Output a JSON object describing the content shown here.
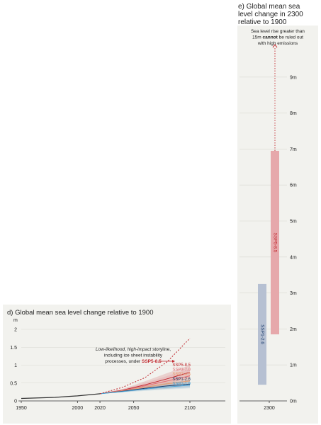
{
  "panel_d": {
    "title": "d) Global mean sea level change relative to 1900",
    "unit": "m",
    "annotation": {
      "line1_italic_1": "Low-likelihood",
      "line1_mid": ", ",
      "line1_italic_2": "high-impact",
      "line1_tail": " storyline,",
      "line2": "including ice sheet instability",
      "line3_prefix": "processes, under ",
      "line3_scenario": "SSP5-8.5"
    }
  },
  "panel_e": {
    "title_lines": [
      "e) Global mean sea",
      "level change in 2300",
      "relative to 1900"
    ],
    "note": {
      "line1": "Sea level rise greater than",
      "line2_prefix": "15m ",
      "line2_bold": "cannot",
      "line2_suffix": " be ruled out",
      "line3": "with high emissions"
    }
  },
  "colors": {
    "historical": "#333333",
    "ssp585": "#c0272d",
    "ssp370": "#e0707a",
    "ssp245": "#e8a070",
    "ssp126": "#1f3f6e",
    "ssp119": "#4aa3d6",
    "bar_ssp585": "#e6a8ab",
    "bar_ssp126": "#b6c0d2",
    "panel_bg": "#f2f2ee"
  },
  "chart_data": [
    {
      "type": "line",
      "title": "d) Global mean sea level change relative to 1900",
      "ylabel": "m",
      "xlim": [
        1950,
        2100
      ],
      "ylim": [
        0,
        2
      ],
      "x_ticks": [
        "1950",
        "2000",
        "2020",
        "2050",
        "2100"
      ],
      "y_ticks": [
        "0",
        "0.5",
        "1",
        "1.5",
        "2"
      ],
      "historical": {
        "x": [
          1950,
          1960,
          1970,
          1980,
          1990,
          2000,
          2010,
          2020
        ],
        "y": [
          0.07,
          0.08,
          0.09,
          0.1,
          0.12,
          0.14,
          0.17,
          0.2
        ]
      },
      "series": [
        {
          "name": "SSP5-8.5",
          "x": [
            2020,
            2040,
            2060,
            2080,
            2100
          ],
          "y": [
            0.2,
            0.3,
            0.45,
            0.62,
            0.8
          ],
          "low": [
            0.2,
            0.27,
            0.37,
            0.49,
            0.63
          ],
          "high": [
            0.2,
            0.33,
            0.55,
            0.78,
            1.0
          ]
        },
        {
          "name": "SSP3-7.0",
          "x": [
            2020,
            2040,
            2060,
            2080,
            2100
          ],
          "y": [
            0.2,
            0.29,
            0.42,
            0.56,
            0.7
          ],
          "low": [
            0.2,
            0.27,
            0.34,
            0.44,
            0.54
          ],
          "high": [
            0.2,
            0.32,
            0.5,
            0.7,
            0.9
          ]
        },
        {
          "name": "SSP2-4.5",
          "x": [
            2020,
            2040,
            2060,
            2080,
            2100
          ],
          "y": [
            0.2,
            0.28,
            0.38,
            0.48,
            0.56
          ],
          "low": [
            0.2,
            0.26,
            0.32,
            0.38,
            0.44
          ],
          "high": [
            0.2,
            0.3,
            0.44,
            0.58,
            0.72
          ]
        },
        {
          "name": "SSP1-2.6",
          "x": [
            2020,
            2040,
            2060,
            2080,
            2100
          ],
          "y": [
            0.2,
            0.27,
            0.35,
            0.42,
            0.47
          ],
          "low": [
            0.2,
            0.25,
            0.3,
            0.34,
            0.38
          ],
          "high": [
            0.2,
            0.29,
            0.4,
            0.5,
            0.59
          ]
        },
        {
          "name": "SSP1-1.9",
          "x": [
            2020,
            2040,
            2060,
            2080,
            2100
          ],
          "y": [
            0.2,
            0.26,
            0.33,
            0.39,
            0.44
          ],
          "low": [
            0.2,
            0.24,
            0.28,
            0.32,
            0.35
          ],
          "high": [
            0.2,
            0.28,
            0.37,
            0.45,
            0.52
          ]
        }
      ],
      "storyline": {
        "scenario": "SSP5-8.5",
        "x": [
          2020,
          2040,
          2060,
          2080,
          2100
        ],
        "y": [
          0.2,
          0.38,
          0.65,
          1.1,
          1.75
        ]
      }
    },
    {
      "type": "bar",
      "title": "e) Global mean sea level change in 2300 relative to 1900",
      "x_ticks": [
        "2300"
      ],
      "y_ticks": [
        "0m",
        "1m",
        "2m",
        "3m",
        "4m",
        "5m",
        "6m",
        "7m",
        "8m",
        "9m"
      ],
      "ylim": [
        0,
        10
      ],
      "bars": [
        {
          "name": "SSP1-2.6",
          "low": 0.45,
          "high": 3.25
        },
        {
          "name": "SSP5-8.5",
          "low": 1.85,
          "high": 6.95
        }
      ],
      "arrow_to": 9.9
    }
  ]
}
